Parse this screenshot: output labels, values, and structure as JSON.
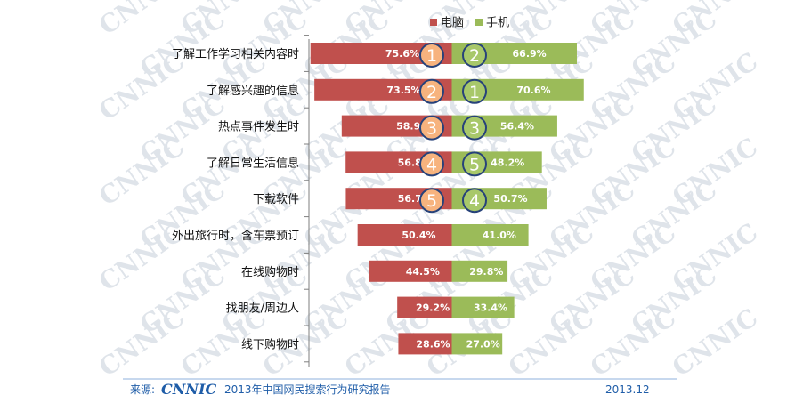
{
  "legend": {
    "pc_label": "电脑",
    "mobile_label": "手机"
  },
  "colors": {
    "pc": "#c0504d",
    "mobile": "#9bbb59",
    "rank_pc": "#f7b37e",
    "rank_mobile": "#a8c86a",
    "rank_border": "#27427a",
    "footer": "#1f5da8",
    "watermark": "#dfe4ea"
  },
  "watermark_text": "CNNIC",
  "footer": {
    "source_prefix": "来源:",
    "source_logo": "CNNIC",
    "source_title": "2013年中国网民搜索行为研究报告",
    "date": "2013.12"
  },
  "chart_data": {
    "type": "bar",
    "orientation": "horizontal-diverging",
    "categories": [
      "了解工作学习相关内容时",
      "了解感兴趣的信息",
      "热点事件发生时",
      "了解日常生活信息",
      "下载软件",
      "外出旅行时，含车票预订",
      "在线购物时",
      "找朋友/周边人",
      "线下购物时"
    ],
    "series": [
      {
        "name": "电脑",
        "values": [
          75.6,
          73.5,
          58.9,
          56.8,
          56.7,
          50.4,
          44.5,
          29.2,
          28.6
        ],
        "labels": [
          "75.6%",
          "73.5%",
          "58.9%",
          "56.8%",
          "56.7%",
          "50.4%",
          "44.5%",
          "29.2%",
          "28.6%"
        ],
        "ranks": [
          "1",
          "2",
          "3",
          "4",
          "5",
          null,
          null,
          null,
          null
        ]
      },
      {
        "name": "手机",
        "values": [
          66.9,
          70.6,
          56.4,
          48.2,
          50.7,
          41.0,
          29.8,
          33.4,
          27.0
        ],
        "labels": [
          "66.9%",
          "70.6%",
          "56.4%",
          "48.2%",
          "50.7%",
          "41.0%",
          "29.8%",
          "33.4%",
          "27.0%"
        ],
        "ranks": [
          "2",
          "1",
          "3",
          "5",
          "4",
          null,
          null,
          null,
          null
        ]
      }
    ],
    "legend_position": "top-right",
    "grid": false
  }
}
